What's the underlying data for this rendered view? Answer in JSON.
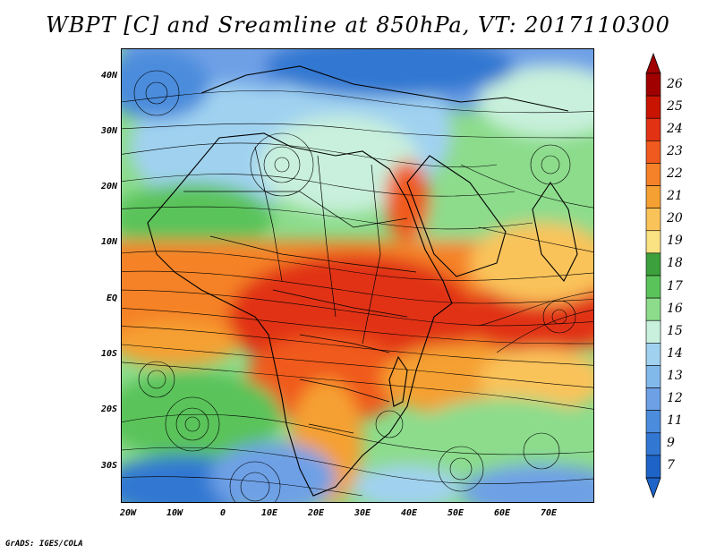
{
  "title": "WBPT [C] and Sreamline at 850hPa, VT: 2017110300",
  "credit": "GrADS: IGES/COLA",
  "lat_labels": [
    "40N",
    "30N",
    "20N",
    "10N",
    "EQ",
    "10S",
    "20S",
    "30S"
  ],
  "lon_labels": [
    "20W",
    "10W",
    "0",
    "10E",
    "20E",
    "30E",
    "40E",
    "50E",
    "60E",
    "70E"
  ],
  "colorbar": {
    "labels": [
      "26",
      "25",
      "24",
      "23",
      "22",
      "21",
      "20",
      "19",
      "18",
      "17",
      "16",
      "15",
      "14",
      "13",
      "12",
      "11",
      "9",
      "7"
    ],
    "colors": [
      "#a00000",
      "#c81400",
      "#e13214",
      "#f05a1e",
      "#f58228",
      "#f5a032",
      "#fac35a",
      "#fae182",
      "#3ca03c",
      "#5ac35a",
      "#8cdc8c",
      "#c8f0dc",
      "#a0d2f0",
      "#82b9eb",
      "#6ea0e6",
      "#4b8cdc",
      "#3278d2",
      "#1e64c8"
    ]
  },
  "field_colors": {
    "hot": "#e13214",
    "warm": "#f58228",
    "mild": "#fac35a",
    "green": "#5ac35a",
    "lightgreen": "#8cdc8c",
    "pale": "#c8f0dc",
    "lightblue": "#a0d2f0",
    "blue": "#6ea0e6",
    "deepblue": "#3278d2"
  }
}
